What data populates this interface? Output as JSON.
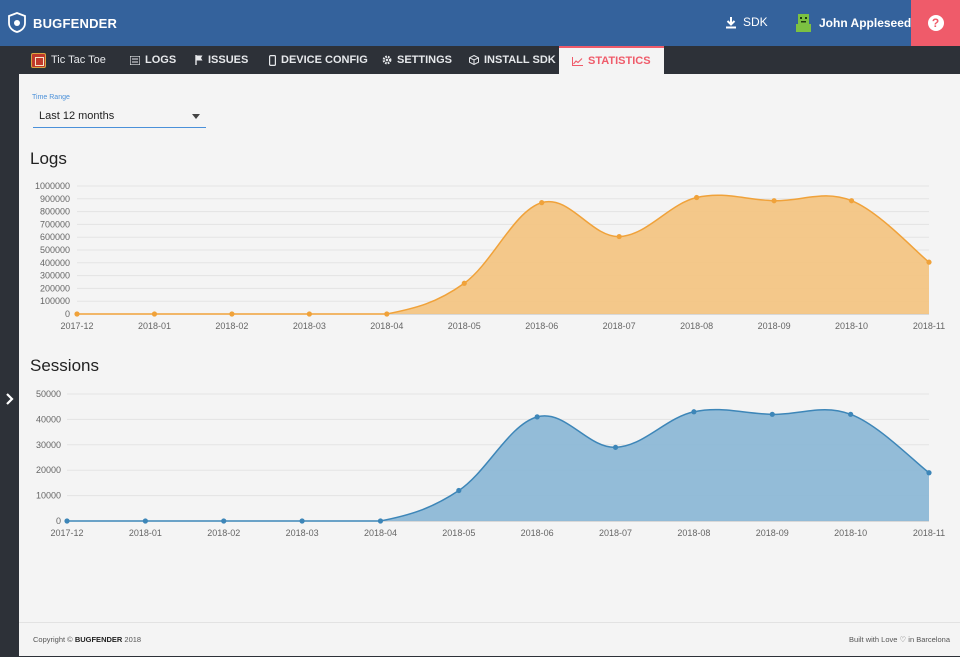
{
  "header": {
    "brand": "BUGFENDER",
    "sdk_label": "SDK",
    "user_name": "John Appleseed",
    "help_glyph": "?"
  },
  "tabs": [
    {
      "label": "Tic Tac Toe",
      "icon": "app-icon"
    },
    {
      "label": "LOGS",
      "icon": "list-icon"
    },
    {
      "label": "ISSUES",
      "icon": "flag-icon"
    },
    {
      "label": "DEVICE CONFIG",
      "icon": "device-icon"
    },
    {
      "label": "SETTINGS",
      "icon": "gear-icon"
    },
    {
      "label": "INSTALL SDK",
      "icon": "cube-icon"
    },
    {
      "label": "STATISTICS",
      "icon": "chart-icon",
      "active": true
    }
  ],
  "filters": {
    "time_range_label": "Time Range",
    "time_range_value": "Last 12 months"
  },
  "colors": {
    "header": "#34629c",
    "accent": "#ef5b6a",
    "logs_line": "#f0a23a",
    "logs_fill": "#f3c584",
    "sessions_line": "#3d86b8",
    "sessions_fill": "#8db8d6"
  },
  "chart_data": [
    {
      "type": "area",
      "title": "Logs",
      "x": [
        "2017-12",
        "2018-01",
        "2018-02",
        "2018-03",
        "2018-04",
        "2018-05",
        "2018-06",
        "2018-07",
        "2018-08",
        "2018-09",
        "2018-10",
        "2018-11"
      ],
      "y_ticks": [
        "1000000",
        "900000",
        "800000",
        "700000",
        "600000",
        "500000",
        "400000",
        "300000",
        "200000",
        "100000",
        "0"
      ],
      "ylim": [
        0,
        1000000
      ],
      "values": [
        0,
        0,
        0,
        0,
        0,
        240000,
        870000,
        605000,
        910000,
        885000,
        885000,
        405000
      ],
      "grid": true
    },
    {
      "type": "area",
      "title": "Sessions",
      "x": [
        "2017-12",
        "2018-01",
        "2018-02",
        "2018-03",
        "2018-04",
        "2018-05",
        "2018-06",
        "2018-07",
        "2018-08",
        "2018-09",
        "2018-10",
        "2018-11"
      ],
      "y_ticks": [
        "50000",
        "40000",
        "30000",
        "20000",
        "10000",
        "0"
      ],
      "ylim": [
        0,
        50000
      ],
      "values": [
        0,
        0,
        0,
        0,
        0,
        12000,
        41000,
        29000,
        43000,
        42000,
        42000,
        19000
      ],
      "grid": true
    }
  ],
  "footer": {
    "copyright_prefix": "Copyright ©",
    "copyright_brand": "BUGFENDER",
    "copyright_year": "2018",
    "built_with": "Built with Love ♡ in Barcelona"
  }
}
